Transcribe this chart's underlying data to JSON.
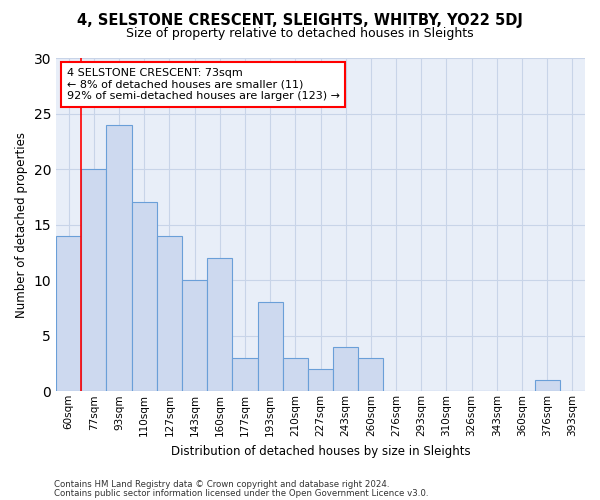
{
  "title": "4, SELSTONE CRESCENT, SLEIGHTS, WHITBY, YO22 5DJ",
  "subtitle": "Size of property relative to detached houses in Sleights",
  "xlabel": "Distribution of detached houses by size in Sleights",
  "ylabel": "Number of detached properties",
  "categories": [
    "60sqm",
    "77sqm",
    "93sqm",
    "110sqm",
    "127sqm",
    "143sqm",
    "160sqm",
    "177sqm",
    "193sqm",
    "210sqm",
    "227sqm",
    "243sqm",
    "260sqm",
    "276sqm",
    "293sqm",
    "310sqm",
    "326sqm",
    "343sqm",
    "360sqm",
    "376sqm",
    "393sqm"
  ],
  "values": [
    14,
    20,
    24,
    17,
    14,
    10,
    12,
    3,
    8,
    3,
    2,
    4,
    3,
    0,
    0,
    0,
    0,
    0,
    0,
    1,
    0
  ],
  "bar_color": "#cdd9ef",
  "bar_edge_color": "#6a9fd8",
  "marker_color": "red",
  "annotation_text": "4 SELSTONE CRESCENT: 73sqm\n← 8% of detached houses are smaller (11)\n92% of semi-detached houses are larger (123) →",
  "annotation_box_edge": "red",
  "ylim": [
    0,
    30
  ],
  "yticks": [
    0,
    5,
    10,
    15,
    20,
    25,
    30
  ],
  "grid_color": "#c8d4e8",
  "bg_color": "#e8eef8",
  "title_fontsize": 10.5,
  "subtitle_fontsize": 9,
  "axis_label_fontsize": 8.5,
  "tick_fontsize": 7.5,
  "footer1": "Contains HM Land Registry data © Crown copyright and database right 2024.",
  "footer2": "Contains public sector information licensed under the Open Government Licence v3.0."
}
